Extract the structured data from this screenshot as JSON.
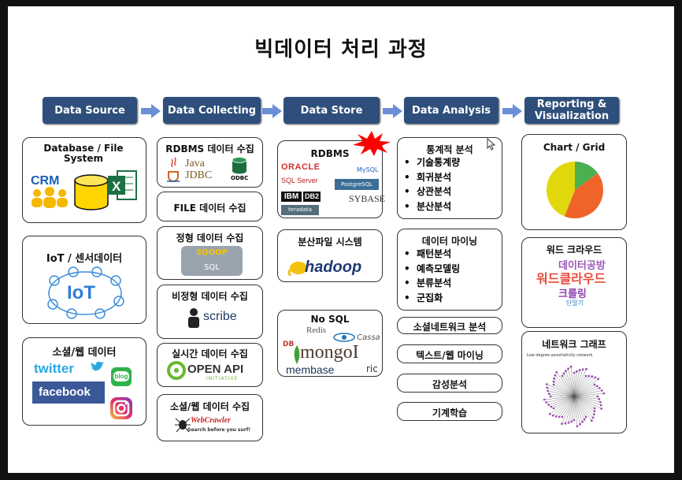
{
  "title": "빅데이터 처리 과정",
  "headers": [
    "Data Source",
    "Data Collecting",
    "Data Store",
    "Data Analysis",
    "Reporting & Visualization"
  ],
  "source": {
    "db_title": "Database / File System",
    "crm": "CRM",
    "iot_title": "IoT / 센서데이터",
    "iot_logo": "IoT",
    "social_title": "소셜/웹 데이터",
    "twitter": "twitter",
    "facebook": "facebook",
    "blog": "blog"
  },
  "collecting": {
    "rdbms": "RDBMS 데이터 수집",
    "java": "Java",
    "jdbc": "JDBC",
    "odbc": "ODBC",
    "file": "FILE 데이터 수집",
    "structured": "정형 데이터 수집",
    "sqoop": "SQOOP",
    "sql": "SQL",
    "unstructured": "비정형 데이터 수집",
    "scribe": "scribe",
    "realtime": "실시간 데이터 수집",
    "openapi": "OPEN API",
    "openapi_sub": "INITIATIVE",
    "social": "소셜/웹 데이터 수집",
    "webcrawler": "WebCrawler",
    "webcrawler_sub": "Search before you surf!"
  },
  "store": {
    "rdbms": "RDBMS",
    "oracle": "ORACLE",
    "mysql": "MySQL",
    "sqlserver": "SQL Server",
    "postgresql": "PostgreSQL",
    "ibm": "IBM",
    "db2": "DB2",
    "sybase": "SYBASE",
    "teradata": "teradata",
    "dfs": "분산파일 시스템",
    "hadoop": "hadoop",
    "nosql": "No SQL",
    "redis": "Redis",
    "cassandra": "Cassa",
    "mongo": "mongoI",
    "membase": "membase",
    "riak": "ric",
    "db": "DB"
  },
  "analysis": {
    "stats_title": "통계적 분석",
    "stats_items": [
      "기술통계량",
      "회귀분석",
      "상관분석",
      "분산분석"
    ],
    "mining_title": "데이터 마이닝",
    "mining_items": [
      "패턴분석",
      "예측모델링",
      "분류분석",
      "군집화"
    ],
    "sna": "소셜네트워크 분석",
    "textmining": "텍스트/웹 마이닝",
    "sentiment": "감성분석",
    "ml": "기계학습"
  },
  "reporting": {
    "chart_title": "Chart / Grid",
    "cloud_title": "워드 크라우드",
    "cloud_words": [
      "데이터공방",
      "워드클라우드",
      "크롤링",
      "단말기"
    ],
    "network_title": "네트워크 그래프",
    "network_subtitle": "Low degree assortativity network"
  },
  "colors": {
    "header_bg": "#2e4f7b",
    "arrow": "#6a8fd6",
    "pie_green": "#4caf50",
    "pie_orange": "#f0642a",
    "pie_yellow": "#e0d80c"
  },
  "chart_data": {
    "type": "pie",
    "categories": [
      "",
      "",
      ""
    ],
    "values": [
      15,
      41,
      44
    ]
  }
}
